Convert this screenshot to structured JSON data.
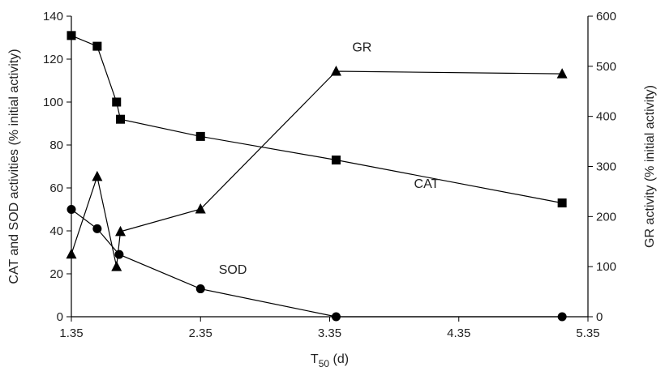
{
  "chart_data": {
    "type": "line",
    "xlabel": "T",
    "xlabel_sub": "50",
    "xlabel_unit": " (d)",
    "ylabel": "CAT and SOD activities (% initial activity)",
    "y2label": "GR activity (% initial activity)",
    "xlim": [
      1.35,
      5.35
    ],
    "ylim": [
      0,
      140
    ],
    "y2lim": [
      0,
      600
    ],
    "x_ticks": [
      "1.35",
      "2.35",
      "3.35",
      "4.35",
      "5.35"
    ],
    "y_ticks": [
      "0",
      "20",
      "40",
      "60",
      "80",
      "100",
      "120",
      "140"
    ],
    "y2_ticks": [
      "0",
      "100",
      "200",
      "300",
      "400",
      "500",
      "600"
    ],
    "grid": false,
    "legend": "none",
    "series": [
      {
        "name": "CAT",
        "axis": "left",
        "marker": "square",
        "x": [
          1.35,
          1.55,
          1.7,
          1.73,
          2.35,
          3.4,
          5.15
        ],
        "values": [
          131,
          126,
          100,
          92,
          84,
          73,
          53
        ]
      },
      {
        "name": "SOD",
        "axis": "left",
        "marker": "circle",
        "x": [
          1.35,
          1.55,
          1.72,
          2.35,
          3.4,
          5.15
        ],
        "values": [
          50,
          41,
          29,
          13,
          0,
          0
        ]
      },
      {
        "name": "GR",
        "axis": "right",
        "marker": "triangle",
        "x": [
          1.35,
          1.55,
          1.7,
          1.73,
          2.35,
          3.4,
          5.15
        ],
        "values": [
          125,
          280,
          100,
          170,
          215,
          490,
          485
        ]
      }
    ]
  }
}
